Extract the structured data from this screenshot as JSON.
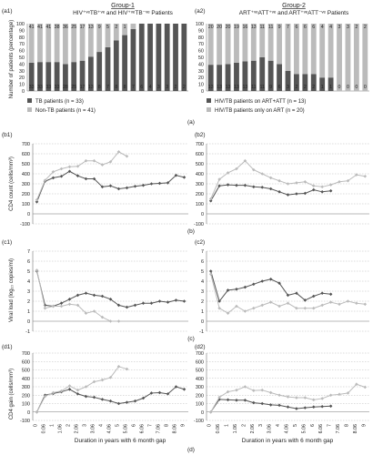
{
  "groups": {
    "g1_title": "Group-1",
    "g1_subtitle": "HIV⁺ᵛᵉTB⁺ᵛᵉ and HIV⁺ᵛᵉTB⁻ᵛᵉ Patients",
    "g2_title": "Group-2",
    "g2_subtitle": "ART⁺ᵛᵉATT⁺ᵛᵉ and ART⁺ᵛᵉATT⁻ᵛᵉ Patients"
  },
  "axis_labels": {
    "pct": "Number of patients (percentage)",
    "cd4": "CD4 count (cells/mm³)",
    "vl": "Viral load (log₁₀ copies/ml)",
    "gain": "CD4 gain (cells/mm³)",
    "xlabel": "Duration in years with 6 month gap"
  },
  "panel_labels": {
    "a1": "(a1)",
    "a2": "(a2)",
    "a": "(a)",
    "b1": "(b1)",
    "b2": "(b2)",
    "b": "(b)",
    "c1": "(c1)",
    "c2": "(c2)",
    "c": "(c)",
    "d1": "(d1)",
    "d2": "(d2)",
    "d": "(d)"
  },
  "legend": {
    "g1_tb": "TB patients (n = 33)",
    "g1_nontb": "Non-TB patients (n = 41)",
    "g2_att": "HIV/TB patients on ART+ATT (n = 13)",
    "g2_art": "HIV/TB patients only on ART (n = 20)"
  },
  "colors": {
    "dark": "#555555",
    "light": "#bbbbbb",
    "grid": "#bbbbbb"
  },
  "chart_data": [
    {
      "id": "a1",
      "type": "bar",
      "categories": [
        "0",
        "0.06",
        "1",
        "1.06",
        "2",
        "2.06",
        "3",
        "3.06",
        "4",
        "4.06",
        "5",
        "5.06",
        "6",
        "6.06",
        "7",
        "7.06",
        "8",
        "8.06",
        "9"
      ],
      "series": [
        {
          "name": "TB patients (n = 33)",
          "values": [
            42,
            43,
            43,
            43,
            40,
            43,
            45,
            51,
            58,
            65,
            75,
            83,
            92,
            100,
            100,
            100,
            100,
            100,
            100
          ]
        },
        {
          "name": "Non-TB patients (n = 41)",
          "values": [
            58,
            57,
            57,
            57,
            60,
            57,
            55,
            49,
            42,
            35,
            25,
            17,
            8,
            0,
            0,
            0,
            0,
            0,
            0
          ]
        }
      ],
      "top_labels": [
        "41",
        "41",
        "41",
        "38",
        "36",
        "25",
        "17",
        "13",
        "9",
        "5",
        "2",
        "1",
        "",
        "",
        "",
        "",
        "",
        "",
        ""
      ],
      "bottom_labels": [
        "33",
        "33",
        "33",
        "33",
        "28",
        "25",
        "17",
        "13",
        "8",
        "7",
        "8",
        "8",
        "7",
        "6",
        "4",
        "3",
        "3",
        "2",
        "2"
      ],
      "ylim": [
        0,
        100
      ],
      "yticks": [
        0,
        10,
        20,
        30,
        40,
        50,
        60,
        70,
        80,
        90,
        100
      ]
    },
    {
      "id": "a2",
      "type": "bar",
      "categories": [
        "0",
        "0.06",
        "1",
        "1.06",
        "2",
        "2.06",
        "3",
        "3.06",
        "4",
        "4.06",
        "5",
        "5.06",
        "6",
        "6.06",
        "7",
        "7.06",
        "8",
        "8.06",
        "9"
      ],
      "series": [
        {
          "name": "HIV/TB patients on ART+ATT (n = 13)",
          "values": [
            39,
            39,
            40,
            42,
            44,
            45,
            50,
            45,
            40,
            30,
            25,
            25,
            25,
            20,
            20,
            0,
            0,
            0,
            0
          ]
        },
        {
          "name": "HIV/TB patients only on ART (n = 20)",
          "values": [
            61,
            61,
            60,
            58,
            56,
            55,
            50,
            55,
            60,
            70,
            75,
            75,
            75,
            80,
            80,
            100,
            100,
            100,
            100
          ]
        }
      ],
      "top_labels": [
        "20",
        "20",
        "20",
        "19",
        "16",
        "13",
        "11",
        "11",
        "9",
        "7",
        "6",
        "6",
        "6",
        "4",
        "4",
        "3",
        "3",
        "2",
        "2"
      ],
      "bottom_labels": [
        "13",
        "13",
        "13",
        "13",
        "13",
        "11",
        "11",
        "9",
        "6",
        "3",
        "2",
        "2",
        "2",
        "1",
        "1",
        "0",
        "0",
        "0",
        "0"
      ],
      "ylim": [
        0,
        100
      ],
      "yticks": [
        0,
        10,
        20,
        30,
        40,
        50,
        60,
        70,
        80,
        90,
        100
      ]
    },
    {
      "id": "b1",
      "type": "line",
      "x": [
        0,
        1,
        2,
        3,
        4,
        5,
        6,
        7,
        8,
        9,
        10,
        11,
        12,
        13,
        14,
        15,
        16,
        17,
        18
      ],
      "series": [
        {
          "name": "TB",
          "color": "dark",
          "values": [
            120,
            325,
            360,
            375,
            425,
            380,
            350,
            350,
            270,
            280,
            250,
            260,
            275,
            285,
            300,
            305,
            310,
            385,
            365
          ]
        },
        {
          "name": "Non-TB",
          "color": "light",
          "values": [
            140,
            335,
            420,
            450,
            470,
            475,
            530,
            530,
            490,
            520,
            620,
            575,
            null,
            null,
            null,
            null,
            null,
            null,
            null
          ]
        }
      ],
      "ylim": [
        -100,
        700
      ],
      "yticks": [
        -100,
        0,
        100,
        200,
        300,
        400,
        500,
        600,
        700
      ]
    },
    {
      "id": "b2",
      "type": "line",
      "x": [
        0,
        1,
        2,
        3,
        4,
        5,
        6,
        7,
        8,
        9,
        10,
        11,
        12,
        13,
        14,
        15,
        16,
        17,
        18
      ],
      "series": [
        {
          "name": "ART+ATT",
          "color": "dark",
          "values": [
            130,
            280,
            290,
            285,
            285,
            270,
            265,
            250,
            220,
            190,
            200,
            205,
            240,
            220,
            230,
            null,
            null,
            null,
            null
          ]
        },
        {
          "name": "ART only",
          "color": "light",
          "values": [
            150,
            345,
            410,
            450,
            530,
            440,
            400,
            360,
            330,
            300,
            310,
            320,
            280,
            270,
            290,
            320,
            330,
            390,
            375
          ]
        }
      ],
      "ylim": [
        -100,
        700
      ],
      "yticks": [
        -100,
        0,
        100,
        200,
        300,
        400,
        500,
        600,
        700
      ]
    },
    {
      "id": "c1",
      "type": "line",
      "x": [
        0,
        1,
        2,
        3,
        4,
        5,
        6,
        7,
        8,
        9,
        10,
        11,
        12,
        13,
        14,
        15,
        16,
        17,
        18
      ],
      "series": [
        {
          "name": "TB",
          "color": "dark",
          "values": [
            5.0,
            1.6,
            1.5,
            1.8,
            2.2,
            2.6,
            2.8,
            2.6,
            2.5,
            2.2,
            1.6,
            1.4,
            1.6,
            1.8,
            1.8,
            2.0,
            1.9,
            2.1,
            2.0
          ]
        },
        {
          "name": "Non-TB",
          "color": "light",
          "values": [
            5.1,
            1.3,
            1.5,
            1.5,
            1.7,
            1.6,
            0.8,
            1.0,
            0.4,
            0.0,
            0.0,
            null,
            null,
            null,
            null,
            null,
            null,
            null,
            null
          ]
        }
      ],
      "ylim": [
        -1,
        7
      ],
      "yticks": [
        -1,
        0,
        1,
        2,
        3,
        4,
        5,
        6,
        7
      ]
    },
    {
      "id": "c2",
      "type": "line",
      "x": [
        0,
        1,
        2,
        3,
        4,
        5,
        6,
        7,
        8,
        9,
        10,
        11,
        12,
        13,
        14,
        15,
        16,
        17,
        18
      ],
      "series": [
        {
          "name": "ART+ATT",
          "color": "dark",
          "values": [
            5.0,
            2.0,
            3.1,
            3.2,
            3.4,
            3.7,
            4.0,
            4.2,
            3.8,
            2.6,
            2.8,
            2.1,
            2.5,
            2.8,
            2.7,
            null,
            null,
            null,
            null
          ]
        },
        {
          "name": "ART only",
          "color": "light",
          "values": [
            4.7,
            1.3,
            0.8,
            1.5,
            1.0,
            1.3,
            1.6,
            1.9,
            1.5,
            1.8,
            1.3,
            1.3,
            1.3,
            1.6,
            1.9,
            1.7,
            2.0,
            1.8,
            1.7
          ]
        }
      ],
      "ylim": [
        -1,
        7
      ],
      "yticks": [
        -1,
        0,
        1,
        2,
        3,
        4,
        5,
        6,
        7
      ]
    },
    {
      "id": "d1",
      "type": "line",
      "x": [
        0,
        1,
        2,
        3,
        4,
        5,
        6,
        7,
        8,
        9,
        10,
        11,
        12,
        13,
        14,
        15,
        16,
        17,
        18
      ],
      "series": [
        {
          "name": "TB",
          "color": "dark",
          "values": [
            0,
            200,
            220,
            240,
            270,
            215,
            185,
            175,
            150,
            130,
            100,
            115,
            130,
            165,
            225,
            230,
            215,
            300,
            270
          ]
        },
        {
          "name": "Non-TB",
          "color": "light",
          "values": [
            0,
            185,
            230,
            250,
            310,
            260,
            300,
            360,
            380,
            410,
            540,
            510,
            null,
            null,
            null,
            null,
            null,
            null,
            null
          ]
        }
      ],
      "ylim": [
        -100,
        700
      ],
      "yticks": [
        -100,
        0,
        100,
        200,
        300,
        400,
        500,
        600,
        700
      ]
    },
    {
      "id": "d2",
      "type": "line",
      "x": [
        0,
        1,
        2,
        3,
        4,
        5,
        6,
        7,
        8,
        9,
        10,
        11,
        12,
        13,
        14,
        15,
        16,
        17,
        18
      ],
      "series": [
        {
          "name": "ART+ATT",
          "color": "dark",
          "values": [
            0,
            150,
            145,
            140,
            140,
            110,
            100,
            85,
            80,
            60,
            40,
            50,
            60,
            65,
            70,
            null,
            null,
            null,
            null
          ]
        },
        {
          "name": "ART only",
          "color": "light",
          "values": [
            0,
            175,
            240,
            260,
            300,
            255,
            260,
            230,
            200,
            180,
            170,
            170,
            145,
            160,
            200,
            210,
            225,
            330,
            295
          ]
        }
      ],
      "ylim": [
        -100,
        700
      ],
      "yticks": [
        -100,
        0,
        100,
        200,
        300,
        400,
        500,
        600,
        700
      ]
    }
  ]
}
